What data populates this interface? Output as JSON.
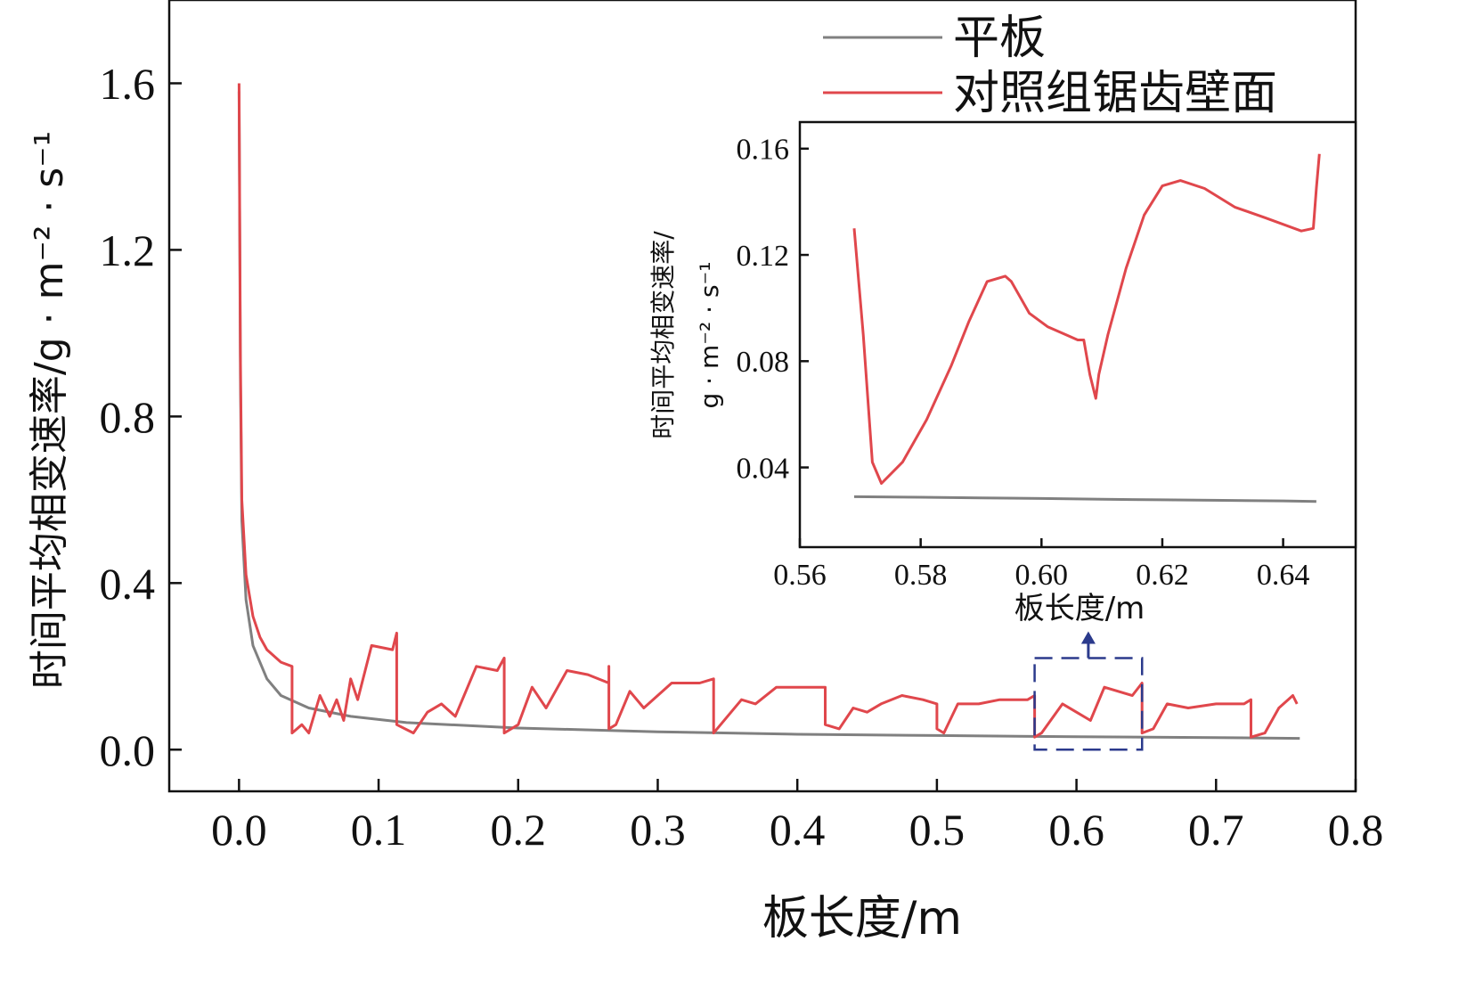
{
  "chart_data": [
    {
      "type": "line",
      "xlabel": "板长度/m",
      "ylabel": "时间平均相变速率/g · m⁻² · s⁻¹",
      "xlim": [
        -0.05,
        0.8
      ],
      "ylim": [
        -0.1,
        1.8
      ],
      "xticks": [
        "0.0",
        "0.1",
        "0.2",
        "0.3",
        "0.4",
        "0.5",
        "0.6",
        "0.7",
        "0.8"
      ],
      "yticks": [
        "0.0",
        "0.4",
        "0.8",
        "1.2",
        "1.6"
      ],
      "legend": {
        "position": "top-right"
      },
      "series": [
        {
          "name": "平板",
          "color": "#808080",
          "points": [
            [
              0.0,
              1.58
            ],
            [
              0.001,
              0.9
            ],
            [
              0.002,
              0.55
            ],
            [
              0.005,
              0.36
            ],
            [
              0.01,
              0.25
            ],
            [
              0.02,
              0.17
            ],
            [
              0.03,
              0.13
            ],
            [
              0.05,
              0.1
            ],
            [
              0.08,
              0.08
            ],
            [
              0.12,
              0.065
            ],
            [
              0.2,
              0.052
            ],
            [
              0.3,
              0.043
            ],
            [
              0.4,
              0.037
            ],
            [
              0.5,
              0.034
            ],
            [
              0.6,
              0.031
            ],
            [
              0.7,
              0.029
            ],
            [
              0.76,
              0.027
            ]
          ]
        },
        {
          "name": "对照组锯齿壁面",
          "color": "#e0474c",
          "points": [
            [
              0.0,
              1.6
            ],
            [
              0.001,
              0.95
            ],
            [
              0.002,
              0.6
            ],
            [
              0.005,
              0.42
            ],
            [
              0.01,
              0.32
            ],
            [
              0.015,
              0.27
            ],
            [
              0.02,
              0.24
            ],
            [
              0.03,
              0.21
            ],
            [
              0.038,
              0.2
            ],
            [
              0.038,
              0.04
            ],
            [
              0.045,
              0.06
            ],
            [
              0.05,
              0.04
            ],
            [
              0.058,
              0.13
            ],
            [
              0.065,
              0.08
            ],
            [
              0.07,
              0.12
            ],
            [
              0.075,
              0.07
            ],
            [
              0.08,
              0.17
            ],
            [
              0.085,
              0.12
            ],
            [
              0.095,
              0.25
            ],
            [
              0.11,
              0.24
            ],
            [
              0.113,
              0.28
            ],
            [
              0.113,
              0.06
            ],
            [
              0.125,
              0.04
            ],
            [
              0.135,
              0.09
            ],
            [
              0.145,
              0.11
            ],
            [
              0.155,
              0.08
            ],
            [
              0.17,
              0.2
            ],
            [
              0.185,
              0.19
            ],
            [
              0.19,
              0.22
            ],
            [
              0.19,
              0.04
            ],
            [
              0.2,
              0.06
            ],
            [
              0.21,
              0.15
            ],
            [
              0.22,
              0.1
            ],
            [
              0.235,
              0.19
            ],
            [
              0.25,
              0.18
            ],
            [
              0.265,
              0.16
            ],
            [
              0.265,
              0.2
            ],
            [
              0.265,
              0.05
            ],
            [
              0.27,
              0.06
            ],
            [
              0.28,
              0.14
            ],
            [
              0.29,
              0.1
            ],
            [
              0.31,
              0.16
            ],
            [
              0.33,
              0.16
            ],
            [
              0.34,
              0.17
            ],
            [
              0.34,
              0.04
            ],
            [
              0.35,
              0.08
            ],
            [
              0.36,
              0.12
            ],
            [
              0.37,
              0.11
            ],
            [
              0.385,
              0.15
            ],
            [
              0.4,
              0.15
            ],
            [
              0.42,
              0.15
            ],
            [
              0.42,
              0.06
            ],
            [
              0.43,
              0.05
            ],
            [
              0.44,
              0.1
            ],
            [
              0.45,
              0.09
            ],
            [
              0.46,
              0.11
            ],
            [
              0.475,
              0.13
            ],
            [
              0.49,
              0.12
            ],
            [
              0.5,
              0.11
            ],
            [
              0.5,
              0.05
            ],
            [
              0.505,
              0.04
            ],
            [
              0.515,
              0.11
            ],
            [
              0.53,
              0.11
            ],
            [
              0.545,
              0.12
            ],
            [
              0.565,
              0.12
            ],
            [
              0.57,
              0.13
            ],
            [
              0.57,
              0.03
            ],
            [
              0.575,
              0.04
            ],
            [
              0.59,
              0.11
            ],
            [
              0.6,
              0.09
            ],
            [
              0.61,
              0.07
            ],
            [
              0.62,
              0.15
            ],
            [
              0.64,
              0.13
            ],
            [
              0.647,
              0.16
            ],
            [
              0.647,
              0.04
            ],
            [
              0.655,
              0.05
            ],
            [
              0.665,
              0.11
            ],
            [
              0.68,
              0.1
            ],
            [
              0.7,
              0.11
            ],
            [
              0.72,
              0.11
            ],
            [
              0.725,
              0.12
            ],
            [
              0.725,
              0.03
            ],
            [
              0.735,
              0.04
            ],
            [
              0.745,
              0.1
            ],
            [
              0.755,
              0.13
            ],
            [
              0.758,
              0.11
            ]
          ]
        }
      ],
      "zoom_box": {
        "x": [
          0.57,
          0.647
        ],
        "y": [
          0.0,
          0.22
        ],
        "color": "#2b3a8c"
      }
    },
    {
      "type": "line",
      "inset": true,
      "xlabel": "板长度/m",
      "ylabel": "时间平均相变速率/",
      "ylabel_unit": "g · m⁻² · s⁻¹",
      "xlim": [
        0.56,
        0.652
      ],
      "ylim": [
        0.01,
        0.17
      ],
      "xticks": [
        "0.56",
        "0.58",
        "0.60",
        "0.62",
        "0.64"
      ],
      "yticks": [
        "0.04",
        "0.08",
        "0.12",
        "0.16"
      ],
      "series": [
        {
          "name": "平板",
          "color": "#808080",
          "points": [
            [
              0.569,
              0.029
            ],
            [
              0.58,
              0.0288
            ],
            [
              0.59,
              0.0285
            ],
            [
              0.6,
              0.0283
            ],
            [
              0.61,
              0.028
            ],
            [
              0.62,
              0.0278
            ],
            [
              0.63,
              0.0276
            ],
            [
              0.64,
              0.0274
            ],
            [
              0.6455,
              0.0272
            ]
          ]
        },
        {
          "name": "对照组锯齿壁面",
          "color": "#e0474c",
          "points": [
            [
              0.569,
              0.13
            ],
            [
              0.5705,
              0.09
            ],
            [
              0.572,
              0.042
            ],
            [
              0.5735,
              0.034
            ],
            [
              0.577,
              0.042
            ],
            [
              0.581,
              0.058
            ],
            [
              0.585,
              0.078
            ],
            [
              0.588,
              0.095
            ],
            [
              0.591,
              0.11
            ],
            [
              0.594,
              0.112
            ],
            [
              0.595,
              0.11
            ],
            [
              0.598,
              0.098
            ],
            [
              0.601,
              0.093
            ],
            [
              0.604,
              0.09
            ],
            [
              0.606,
              0.088
            ],
            [
              0.607,
              0.088
            ],
            [
              0.608,
              0.075
            ],
            [
              0.609,
              0.066
            ],
            [
              0.6095,
              0.075
            ],
            [
              0.611,
              0.09
            ],
            [
              0.614,
              0.115
            ],
            [
              0.617,
              0.135
            ],
            [
              0.62,
              0.146
            ],
            [
              0.623,
              0.148
            ],
            [
              0.627,
              0.145
            ],
            [
              0.632,
              0.138
            ],
            [
              0.637,
              0.134
            ],
            [
              0.643,
              0.129
            ],
            [
              0.645,
              0.13
            ],
            [
              0.6455,
              0.145
            ],
            [
              0.646,
              0.158
            ]
          ]
        }
      ]
    }
  ]
}
